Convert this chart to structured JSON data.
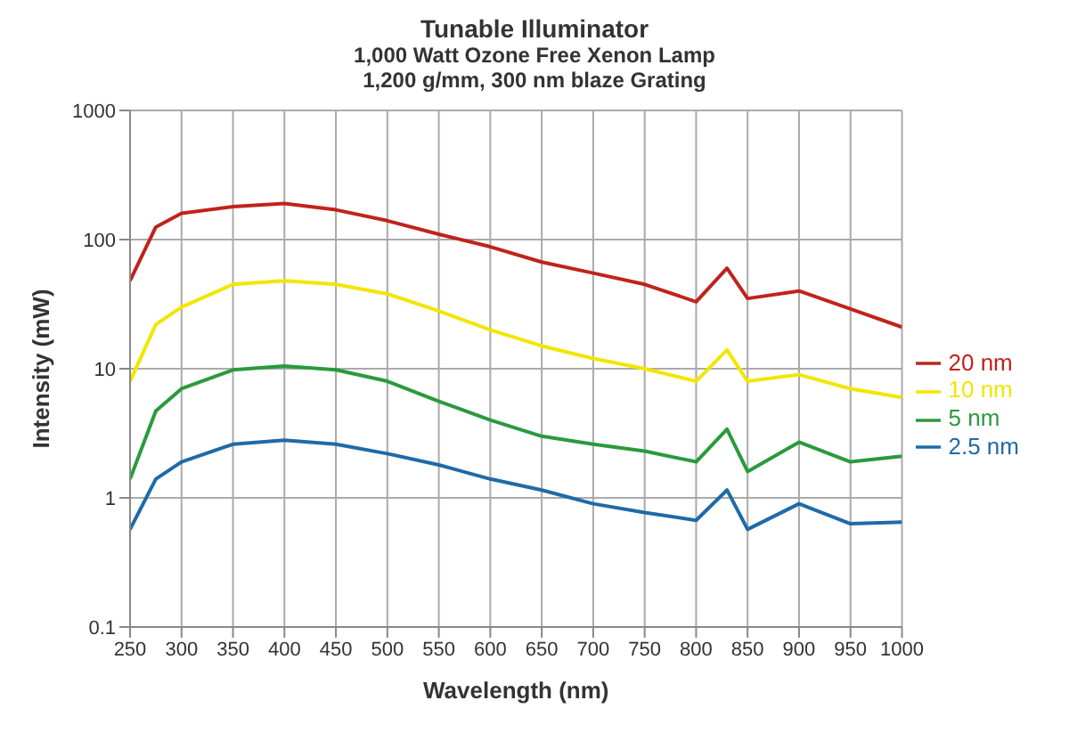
{
  "chart_data": {
    "type": "line",
    "title": "Tunable Illuminator",
    "subtitle": "1,000 Watt Ozone Free Xenon Lamp\n1,200 g/mm, 300 nm blaze Grating",
    "xlabel": "Wavelength (nm)",
    "ylabel": "Intensity (mW)",
    "x": [
      250,
      275,
      300,
      350,
      400,
      450,
      500,
      550,
      600,
      650,
      700,
      750,
      800,
      830,
      850,
      900,
      950,
      1000
    ],
    "series": [
      {
        "name": "20 nm",
        "color": "#c0231c",
        "values": [
          48,
          125,
          160,
          180,
          190,
          170,
          140,
          110,
          88,
          67,
          55,
          45,
          33,
          60,
          35,
          40,
          29,
          21
        ]
      },
      {
        "name": "10 nm",
        "color": "#f2e600",
        "values": [
          8,
          22,
          30,
          45,
          48,
          45,
          38,
          28,
          20,
          15,
          12,
          10,
          8,
          14,
          8,
          9,
          7,
          6
        ]
      },
      {
        "name": "5 nm",
        "color": "#2a9a3c",
        "values": [
          1.4,
          4.7,
          7,
          9.8,
          10.5,
          9.8,
          8,
          5.6,
          4,
          3,
          2.6,
          2.3,
          1.9,
          3.4,
          1.6,
          2.7,
          1.9,
          2.1
        ]
      },
      {
        "name": "2.5 nm",
        "color": "#1f6aa8",
        "values": [
          0.57,
          1.4,
          1.9,
          2.6,
          2.8,
          2.6,
          2.2,
          1.8,
          1.4,
          1.15,
          0.9,
          0.77,
          0.67,
          1.15,
          0.57,
          0.9,
          0.63,
          0.65
        ]
      }
    ],
    "log": "y",
    "xlim": [
      250,
      1000
    ],
    "xticks": [
      250,
      300,
      350,
      400,
      450,
      500,
      550,
      600,
      650,
      700,
      750,
      800,
      850,
      900,
      950,
      1000
    ],
    "ylim": [
      0.1,
      1000
    ],
    "yticks": [
      0.1,
      1,
      10,
      100,
      1000
    ],
    "grid": true,
    "legend": "right",
    "marker": "none",
    "line_style": "solid"
  }
}
